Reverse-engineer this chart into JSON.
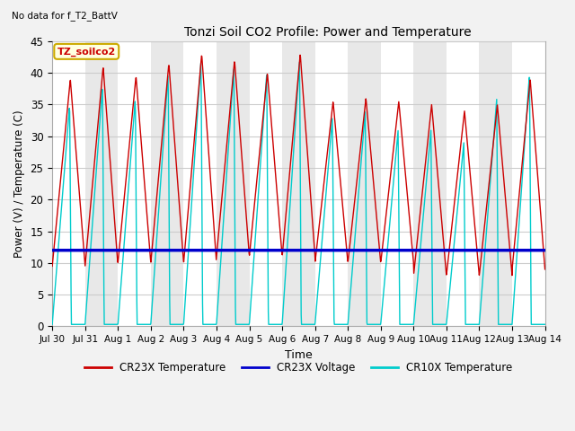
{
  "title": "Tonzi Soil CO2 Profile: Power and Temperature",
  "no_data_note": "No data for f_T2_BattV",
  "ylabel": "Power (V) / Temperature (C)",
  "xlabel": "Time",
  "ylim": [
    0,
    45
  ],
  "annotation_label": "TZ_soilco2",
  "x_tick_labels": [
    "Jul 30",
    "Jul 31",
    "Aug 1",
    "Aug 2",
    "Aug 3",
    "Aug 4",
    "Aug 5",
    "Aug 6",
    "Aug 7",
    "Aug 8",
    "Aug 9",
    "Aug 10",
    "Aug 11",
    "Aug 12",
    "Aug 13",
    "Aug 14"
  ],
  "legend_entries": [
    "CR23X Temperature",
    "CR23X Voltage",
    "CR10X Temperature"
  ],
  "voltage_level": 12.0,
  "voltage_color": "#0000cc",
  "temp_cr23x_color": "#cc0000",
  "temp_cr10x_color": "#00cccc",
  "cr23x_peaks": [
    39,
    41,
    39.5,
    41.5,
    43,
    42,
    40,
    43,
    35.5,
    36,
    35.5,
    35,
    34,
    35,
    39
  ],
  "cr10x_peaks": [
    35,
    38,
    36,
    40,
    42,
    41,
    40,
    42,
    33,
    34,
    31,
    31,
    29,
    36,
    40
  ],
  "cr23x_troughs": [
    9.5,
    9.5,
    10,
    10,
    10,
    11,
    11,
    11,
    10,
    10,
    10,
    8,
    8,
    8,
    9
  ],
  "num_days": 15,
  "bg_colors": [
    "#ffffff",
    "#e8e8e8"
  ]
}
